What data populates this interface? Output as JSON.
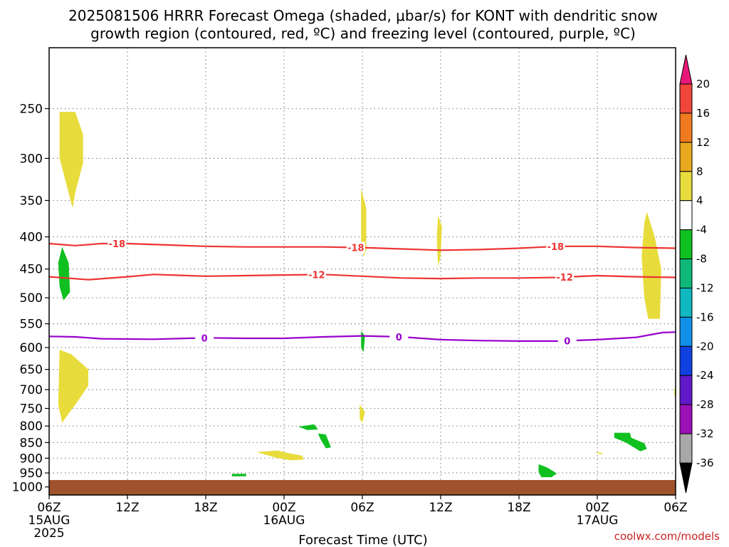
{
  "title_lines": [
    "2025081506 HRRR Forecast Omega (shaded, μbar/s) for KONT with dendritic snow",
    "growth region (contoured, red, ºC) and freezing level (contoured, purple, ºC)"
  ],
  "credit": "coolwx.com/models",
  "colors": {
    "snow_growth": "#ee3333",
    "freezing": "#9900cc",
    "ground": "#a0522d",
    "grid": "#888888"
  },
  "chart_data": {
    "type": "heatmap",
    "xlabel": "Forecast Time (UTC)",
    "x_range_hours": [
      0,
      48
    ],
    "y_range_hpa": [
      200,
      1030
    ],
    "y_scale": "log-pressure",
    "grid": true,
    "y_ticks": [
      "250",
      "300",
      "350",
      "400",
      "450",
      "500",
      "550",
      "600",
      "650",
      "700",
      "750",
      "800",
      "850",
      "900",
      "950",
      "1000"
    ],
    "x_ticks": [
      {
        "hour": 0,
        "lines": [
          "06Z",
          "15AUG",
          "2025"
        ]
      },
      {
        "hour": 6,
        "lines": [
          "12Z"
        ]
      },
      {
        "hour": 12,
        "lines": [
          "18Z"
        ]
      },
      {
        "hour": 18,
        "lines": [
          "00Z",
          "16AUG"
        ]
      },
      {
        "hour": 24,
        "lines": [
          "06Z"
        ]
      },
      {
        "hour": 30,
        "lines": [
          "12Z"
        ]
      },
      {
        "hour": 36,
        "lines": [
          "18Z"
        ]
      },
      {
        "hour": 42,
        "lines": [
          "00Z",
          "17AUG"
        ]
      },
      {
        "hour": 48,
        "lines": [
          "06Z"
        ]
      }
    ],
    "colorbar": {
      "labels": [
        "20",
        "16",
        "12",
        "8",
        "4",
        "-4",
        "-8",
        "-12",
        "-16",
        "-20",
        "-24",
        "-28",
        "-32",
        "-36"
      ],
      "colors": [
        "#e8187a",
        "#f0453a",
        "#f07a20",
        "#e8a820",
        "#e8dc3c",
        "#ffffff",
        "#10c020",
        "#10b878",
        "#10b8c0",
        "#1090e8",
        "#1040e0",
        "#6018c8",
        "#9c10b8",
        "#a8a8a8",
        "#000000"
      ]
    },
    "contours": [
      {
        "level": "-18",
        "color": "#ee3333",
        "label": "-18",
        "points": [
          [
            0,
            410
          ],
          [
            2,
            413
          ],
          [
            4,
            410
          ],
          [
            6,
            410
          ],
          [
            9,
            412
          ],
          [
            12,
            414
          ],
          [
            15,
            415
          ],
          [
            18,
            415
          ],
          [
            21,
            415
          ],
          [
            24,
            416
          ],
          [
            27,
            418
          ],
          [
            30,
            420
          ],
          [
            33,
            419
          ],
          [
            36,
            417
          ],
          [
            39,
            414
          ],
          [
            42,
            414
          ],
          [
            45,
            416
          ],
          [
            48,
            417
          ]
        ],
        "label_hours": [
          5.2,
          23.5,
          38.8
        ]
      },
      {
        "level": "-12",
        "color": "#ee3333",
        "label": "-12",
        "points": [
          [
            0,
            463
          ],
          [
            3,
            468
          ],
          [
            6,
            463
          ],
          [
            8,
            459
          ],
          [
            12,
            462
          ],
          [
            15,
            461
          ],
          [
            18,
            460
          ],
          [
            21,
            459
          ],
          [
            24,
            462
          ],
          [
            27,
            465
          ],
          [
            30,
            466
          ],
          [
            33,
            465
          ],
          [
            36,
            465
          ],
          [
            39,
            464
          ],
          [
            42,
            461
          ],
          [
            45,
            463
          ],
          [
            48,
            464
          ]
        ],
        "label_hours": [
          20.5,
          39.5
        ]
      },
      {
        "level": "0",
        "color": "#9900cc",
        "label": "0",
        "points": [
          [
            0,
            576
          ],
          [
            2,
            577
          ],
          [
            4,
            581
          ],
          [
            8,
            582
          ],
          [
            12,
            579
          ],
          [
            15,
            580
          ],
          [
            18,
            580
          ],
          [
            21,
            577
          ],
          [
            24,
            575
          ],
          [
            27,
            577
          ],
          [
            30,
            583
          ],
          [
            33,
            585
          ],
          [
            36,
            586
          ],
          [
            39,
            586
          ],
          [
            42,
            583
          ],
          [
            45,
            578
          ],
          [
            47,
            568
          ],
          [
            48,
            567
          ]
        ],
        "label_hours": [
          11.9,
          26.8,
          39.7
        ]
      }
    ],
    "shaded_regions": [
      {
        "omega": "4 to 8",
        "color": "#e8dc3c",
        "points": [
          [
            0.8,
            253
          ],
          [
            2,
            253
          ],
          [
            2.6,
            275
          ],
          [
            2.6,
            305
          ],
          [
            2.0,
            340
          ],
          [
            1.8,
            360
          ],
          [
            0.8,
            300
          ]
        ]
      },
      {
        "omega": "4 to 8",
        "color": "#e8dc3c",
        "points": [
          [
            0.8,
            605
          ],
          [
            1.7,
            615
          ],
          [
            3.0,
            650
          ],
          [
            3.0,
            690
          ],
          [
            2.2,
            730
          ],
          [
            1.0,
            790
          ],
          [
            0.7,
            740
          ]
        ]
      },
      {
        "omega": "4 to 8",
        "color": "#e8dc3c",
        "points": [
          [
            23.9,
            335
          ],
          [
            24.3,
            360
          ],
          [
            24.3,
            420
          ],
          [
            24.1,
            430
          ],
          [
            23.9,
            410
          ]
        ]
      },
      {
        "omega": "4 to 8",
        "color": "#e8dc3c",
        "points": [
          [
            29.8,
            370
          ],
          [
            30.1,
            385
          ],
          [
            30.0,
            430
          ],
          [
            29.8,
            445
          ],
          [
            29.7,
            400
          ]
        ]
      },
      {
        "omega": "4 to 8",
        "color": "#e8dc3c",
        "points": [
          [
            23.8,
            740
          ],
          [
            24.2,
            760
          ],
          [
            24.0,
            790
          ],
          [
            23.8,
            780
          ]
        ]
      },
      {
        "omega": "4 to 8",
        "color": "#e8dc3c",
        "points": [
          [
            15.9,
            880
          ],
          [
            17.5,
            875
          ],
          [
            18.3,
            883
          ],
          [
            19.4,
            892
          ],
          [
            19.5,
            905
          ],
          [
            18.5,
            907
          ],
          [
            17.5,
            900
          ]
        ]
      },
      {
        "omega": "4 to 8",
        "color": "#e8dc3c",
        "points": [
          [
            41.8,
            880
          ],
          [
            42.5,
            883
          ],
          [
            42.2,
            887
          ]
        ]
      },
      {
        "omega": "4 to 8",
        "color": "#e8dc3c",
        "points": [
          [
            45.8,
            365
          ],
          [
            46.4,
            400
          ],
          [
            46.9,
            450
          ],
          [
            46.8,
            540
          ],
          [
            45.9,
            540
          ],
          [
            45.6,
            500
          ],
          [
            45.4,
            430
          ],
          [
            45.6,
            380
          ]
        ]
      },
      {
        "omega": "4 to 8",
        "color": "#e8dc3c",
        "points": [
          [
            47.9,
            700
          ],
          [
            48,
            690
          ],
          [
            48,
            720
          ],
          [
            47.9,
            715
          ]
        ]
      },
      {
        "omega": "-4 to -8",
        "color": "#10c020",
        "points": [
          [
            1.0,
            415
          ],
          [
            1.5,
            440
          ],
          [
            1.6,
            490
          ],
          [
            1.1,
            505
          ],
          [
            0.8,
            480
          ],
          [
            0.7,
            440
          ]
        ]
      },
      {
        "omega": "-4 to -8",
        "color": "#10c020",
        "points": [
          [
            23.9,
            565
          ],
          [
            24.2,
            575
          ],
          [
            24.1,
            610
          ],
          [
            23.9,
            600
          ]
        ]
      },
      {
        "omega": "-4 to -8",
        "color": "#10c020",
        "points": [
          [
            19.1,
            802
          ],
          [
            20.3,
            795
          ],
          [
            20.6,
            810
          ],
          [
            19.8,
            812
          ]
        ]
      },
      {
        "omega": "-4 to -8",
        "color": "#10c020",
        "points": [
          [
            20.6,
            822
          ],
          [
            21.2,
            825
          ],
          [
            21.6,
            865
          ],
          [
            21.2,
            868
          ],
          [
            20.8,
            840
          ]
        ]
      },
      {
        "omega": "-4 to -8",
        "color": "#10c020",
        "points": [
          [
            14.0,
            953
          ],
          [
            15.1,
            953
          ],
          [
            15.1,
            962
          ],
          [
            14.0,
            962
          ]
        ]
      },
      {
        "omega": "-4 to -8",
        "color": "#10c020",
        "points": [
          [
            37.5,
            920
          ],
          [
            38.2,
            932
          ],
          [
            38.9,
            952
          ],
          [
            38.5,
            965
          ],
          [
            37.7,
            965
          ],
          [
            37.5,
            945
          ]
        ]
      },
      {
        "omega": "-4 to -8",
        "color": "#10c020",
        "points": [
          [
            43.3,
            820
          ],
          [
            44.5,
            820
          ],
          [
            44.6,
            835
          ],
          [
            45.6,
            852
          ],
          [
            45.8,
            870
          ],
          [
            45.3,
            878
          ],
          [
            44.2,
            850
          ],
          [
            43.3,
            835
          ]
        ]
      }
    ],
    "ground_pressure_hpa": 975
  }
}
